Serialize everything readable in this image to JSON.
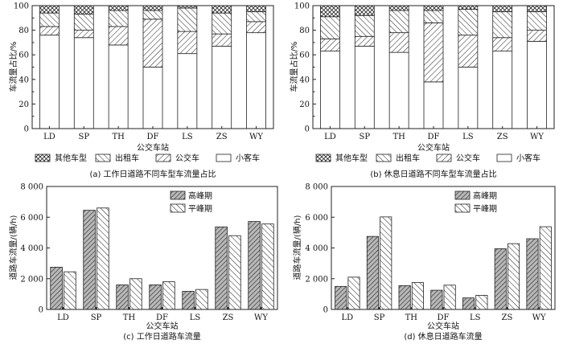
{
  "chart_data": [
    {
      "id": "a",
      "type": "bar",
      "stacked": true,
      "caption": "(a)  工作日道路不同车型车流量占比",
      "xlabel": "公交车站",
      "ylabel": "车流量占比/%",
      "ylim": [
        0,
        100
      ],
      "yticks": [
        "0",
        "20",
        "40",
        "60",
        "80",
        "100"
      ],
      "categories": [
        "LD",
        "SP",
        "TH",
        "DF",
        "LS",
        "ZS",
        "WY"
      ],
      "series": [
        {
          "name": "小客车",
          "pattern": "blank",
          "values": [
            76,
            74,
            68,
            50,
            61,
            67,
            78
          ]
        },
        {
          "name": "公交车",
          "pattern": "hatch-right",
          "values": [
            7,
            6,
            15,
            39,
            18,
            10,
            9
          ]
        },
        {
          "name": "出租车",
          "pattern": "hatch-left",
          "values": [
            11,
            13,
            13,
            7,
            19,
            17,
            8
          ]
        },
        {
          "name": "其他车型",
          "pattern": "cross",
          "values": [
            6,
            7,
            4,
            4,
            2,
            6,
            5
          ]
        }
      ],
      "legend_order": [
        "其他车型",
        "出租车",
        "公交车",
        "小客车"
      ],
      "legend_position": "bottom"
    },
    {
      "id": "b",
      "type": "bar",
      "stacked": true,
      "caption": "(b)  休息日道路不同车型车流量占比",
      "xlabel": "公交车站",
      "ylabel": "车流量占比/%",
      "ylim": [
        0,
        100
      ],
      "yticks": [
        "0",
        "20",
        "40",
        "60",
        "80",
        "100"
      ],
      "categories": [
        "LD",
        "SP",
        "TH",
        "DF",
        "LS",
        "ZS",
        "WY"
      ],
      "series": [
        {
          "name": "小客车",
          "pattern": "blank",
          "values": [
            63,
            67,
            62,
            38,
            50,
            63,
            71
          ]
        },
        {
          "name": "公交车",
          "pattern": "hatch-right",
          "values": [
            10,
            8,
            16,
            48,
            26,
            11,
            9
          ]
        },
        {
          "name": "出租车",
          "pattern": "hatch-left",
          "values": [
            18,
            17,
            18,
            10,
            21,
            21,
            15
          ]
        },
        {
          "name": "其他车型",
          "pattern": "cross",
          "values": [
            9,
            8,
            4,
            4,
            3,
            5,
            5
          ]
        }
      ],
      "legend_order": [
        "其他车型",
        "出租车",
        "公交车",
        "小客车"
      ],
      "legend_position": "bottom"
    },
    {
      "id": "c",
      "type": "bar",
      "stacked": false,
      "caption": "(c)  工作日道路车流量",
      "xlabel": "公交车站",
      "ylabel": "道路车流量/(辆/h)",
      "ylim": [
        0,
        8000
      ],
      "yticks": [
        "0",
        "2 000",
        "4 000",
        "6 000",
        "8 000"
      ],
      "categories": [
        "LD",
        "SP",
        "TH",
        "DF",
        "LS",
        "ZS",
        "WY"
      ],
      "series": [
        {
          "name": "高峰期",
          "pattern": "hatch-right-gray",
          "values": [
            2750,
            6450,
            1600,
            1600,
            1180,
            5370,
            5720
          ]
        },
        {
          "name": "平峰期",
          "pattern": "hatch-left",
          "values": [
            2450,
            6600,
            2000,
            1800,
            1300,
            4800,
            5560
          ]
        }
      ],
      "legend_position": "top-right"
    },
    {
      "id": "d",
      "type": "bar",
      "stacked": false,
      "caption": "(d)  休息日道路车流量",
      "xlabel": "公交车站",
      "ylabel": "道路车流量/(辆/h)",
      "ylim": [
        0,
        8000
      ],
      "yticks": [
        "0",
        "2 000",
        "4 000",
        "6 000",
        "8 000"
      ],
      "categories": [
        "LD",
        "SP",
        "TH",
        "DF",
        "LS",
        "ZS",
        "WY"
      ],
      "series": [
        {
          "name": "高峰期",
          "pattern": "hatch-right-gray",
          "values": [
            1500,
            4750,
            1550,
            1250,
            750,
            3950,
            4600
          ]
        },
        {
          "name": "平峰期",
          "pattern": "hatch-left",
          "values": [
            2100,
            6020,
            1750,
            1580,
            920,
            4280,
            5380
          ]
        }
      ],
      "legend_position": "top-right"
    }
  ]
}
